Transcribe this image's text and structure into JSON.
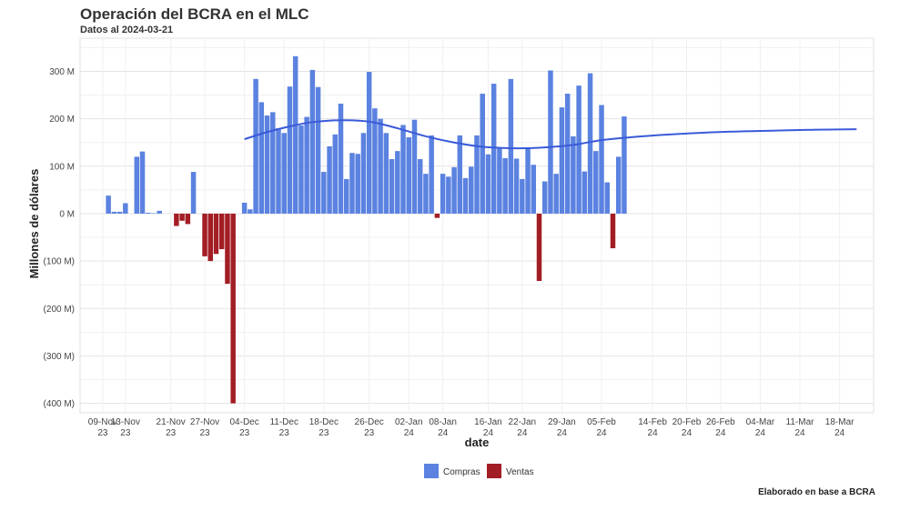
{
  "chart_data": {
    "type": "bar",
    "title": "Operación del BCRA en el MLC",
    "subtitle": "Datos al 2024-03-21",
    "caption": "Elaborado en base a BCRA",
    "xlabel": "date",
    "ylabel": "Millones de dólares",
    "ylim": [
      -420,
      370
    ],
    "yticks": [
      300,
      200,
      100,
      0,
      -100,
      -200,
      -300,
      -400
    ],
    "ytick_labels": [
      "300 M",
      "200 M",
      "100 M",
      "0 M",
      "(100 M)",
      "(200 M)",
      "(300 M)",
      "(400 M)"
    ],
    "xlim": [
      "2023-11-05",
      "2024-03-24"
    ],
    "x_ticks": [
      {
        "date": "2023-11-09",
        "line1": "09-Nov",
        "line2": "23"
      },
      {
        "date": "2023-11-13",
        "line1": "13-Nov",
        "line2": "23"
      },
      {
        "date": "2023-11-21",
        "line1": "21-Nov",
        "line2": "23"
      },
      {
        "date": "2023-11-27",
        "line1": "27-Nov",
        "line2": "23"
      },
      {
        "date": "2023-12-04",
        "line1": "04-Dec",
        "line2": "23"
      },
      {
        "date": "2023-12-11",
        "line1": "11-Dec",
        "line2": "23"
      },
      {
        "date": "2023-12-18",
        "line1": "18-Dec",
        "line2": "23"
      },
      {
        "date": "2023-12-26",
        "line1": "26-Dec",
        "line2": "23"
      },
      {
        "date": "2024-01-02",
        "line1": "02-Jan",
        "line2": "24"
      },
      {
        "date": "2024-01-08",
        "line1": "08-Jan",
        "line2": "24"
      },
      {
        "date": "2024-01-16",
        "line1": "16-Jan",
        "line2": "24"
      },
      {
        "date": "2024-01-22",
        "line1": "22-Jan",
        "line2": "24"
      },
      {
        "date": "2024-01-29",
        "line1": "29-Jan",
        "line2": "24"
      },
      {
        "date": "2024-02-05",
        "line1": "05-Feb",
        "line2": "24"
      },
      {
        "date": "2024-02-14",
        "line1": "14-Feb",
        "line2": "24"
      },
      {
        "date": "2024-02-20",
        "line1": "20-Feb",
        "line2": "24"
      },
      {
        "date": "2024-02-26",
        "line1": "26-Feb",
        "line2": "24"
      },
      {
        "date": "2024-03-04",
        "line1": "04-Mar",
        "line2": "24"
      },
      {
        "date": "2024-03-11",
        "line1": "11-Mar",
        "line2": "24"
      },
      {
        "date": "2024-03-18",
        "line1": "18-Mar",
        "line2": "24"
      }
    ],
    "legend": {
      "position": "bottom",
      "entries": [
        {
          "name": "Compras",
          "color": "#5b82e0"
        },
        {
          "name": "Ventas",
          "color": "#a31d24"
        }
      ]
    },
    "colors": {
      "compras": "#5b82e0",
      "ventas": "#a31d24",
      "trend": "#3a5ad9"
    },
    "grid": true,
    "bars": [
      {
        "date": "2023-11-10",
        "value": 38
      },
      {
        "date": "2023-11-11",
        "value": 4
      },
      {
        "date": "2023-11-12",
        "value": 4
      },
      {
        "date": "2023-11-13",
        "value": 22
      },
      {
        "date": "2023-11-15",
        "value": 120
      },
      {
        "date": "2023-11-16",
        "value": 131
      },
      {
        "date": "2023-11-17",
        "value": 2
      },
      {
        "date": "2023-11-18",
        "value": 1
      },
      {
        "date": "2023-11-19",
        "value": 6
      },
      {
        "date": "2023-11-20",
        "value": 0
      },
      {
        "date": "2023-11-22",
        "value": -26
      },
      {
        "date": "2023-11-23",
        "value": -15
      },
      {
        "date": "2023-11-24",
        "value": -22
      },
      {
        "date": "2023-11-25",
        "value": 88
      },
      {
        "date": "2023-11-26",
        "value": 0
      },
      {
        "date": "2023-11-27",
        "value": -90
      },
      {
        "date": "2023-11-28",
        "value": -100
      },
      {
        "date": "2023-11-29",
        "value": -85
      },
      {
        "date": "2023-11-30",
        "value": -75
      },
      {
        "date": "2023-12-01",
        "value": -148
      },
      {
        "date": "2023-12-02",
        "value": -400
      },
      {
        "date": "2023-12-04",
        "value": 23
      },
      {
        "date": "2023-12-05",
        "value": 9
      },
      {
        "date": "2023-12-06",
        "value": 284
      },
      {
        "date": "2023-12-07",
        "value": 235
      },
      {
        "date": "2023-12-08",
        "value": 207
      },
      {
        "date": "2023-12-09",
        "value": 214
      },
      {
        "date": "2023-12-10",
        "value": 180
      },
      {
        "date": "2023-12-11",
        "value": 170
      },
      {
        "date": "2023-12-12",
        "value": 268
      },
      {
        "date": "2023-12-13",
        "value": 332
      },
      {
        "date": "2023-12-14",
        "value": 186
      },
      {
        "date": "2023-12-15",
        "value": 204
      },
      {
        "date": "2023-12-16",
        "value": 303
      },
      {
        "date": "2023-12-17",
        "value": 267
      },
      {
        "date": "2023-12-18",
        "value": 88
      },
      {
        "date": "2023-12-19",
        "value": 142
      },
      {
        "date": "2023-12-20",
        "value": 167
      },
      {
        "date": "2023-12-21",
        "value": 232
      },
      {
        "date": "2023-12-22",
        "value": 73
      },
      {
        "date": "2023-12-23",
        "value": 128
      },
      {
        "date": "2023-12-24",
        "value": 126
      },
      {
        "date": "2023-12-25",
        "value": 170
      },
      {
        "date": "2023-12-26",
        "value": 299
      },
      {
        "date": "2023-12-27",
        "value": 222
      },
      {
        "date": "2023-12-28",
        "value": 200
      },
      {
        "date": "2023-12-29",
        "value": 170
      },
      {
        "date": "2023-12-30",
        "value": 115
      },
      {
        "date": "2023-12-31",
        "value": 132
      },
      {
        "date": "2024-01-01",
        "value": 187
      },
      {
        "date": "2024-01-02",
        "value": 161
      },
      {
        "date": "2024-01-03",
        "value": 198
      },
      {
        "date": "2024-01-04",
        "value": 115
      },
      {
        "date": "2024-01-05",
        "value": 84
      },
      {
        "date": "2024-01-06",
        "value": 165
      },
      {
        "date": "2024-01-07",
        "value": -9
      },
      {
        "date": "2024-01-08",
        "value": 84
      },
      {
        "date": "2024-01-09",
        "value": 78
      },
      {
        "date": "2024-01-10",
        "value": 98
      },
      {
        "date": "2024-01-11",
        "value": 165
      },
      {
        "date": "2024-01-12",
        "value": 75
      },
      {
        "date": "2024-01-13",
        "value": 99
      },
      {
        "date": "2024-01-14",
        "value": 165
      },
      {
        "date": "2024-01-15",
        "value": 253
      },
      {
        "date": "2024-01-16",
        "value": 125
      },
      {
        "date": "2024-01-17",
        "value": 274
      },
      {
        "date": "2024-01-18",
        "value": 140
      },
      {
        "date": "2024-01-19",
        "value": 117
      },
      {
        "date": "2024-01-20",
        "value": 284
      },
      {
        "date": "2024-01-21",
        "value": 116
      },
      {
        "date": "2024-01-22",
        "value": 73
      },
      {
        "date": "2024-01-23",
        "value": 140
      },
      {
        "date": "2024-01-24",
        "value": 103
      },
      {
        "date": "2024-01-25",
        "value": -142
      },
      {
        "date": "2024-01-26",
        "value": 68
      },
      {
        "date": "2024-01-27",
        "value": 302
      },
      {
        "date": "2024-01-28",
        "value": 84
      },
      {
        "date": "2024-01-29",
        "value": 224
      },
      {
        "date": "2024-01-30",
        "value": 253
      },
      {
        "date": "2024-01-31",
        "value": 163
      },
      {
        "date": "2024-02-01",
        "value": 270
      },
      {
        "date": "2024-02-02",
        "value": 89
      },
      {
        "date": "2024-02-03",
        "value": 296
      },
      {
        "date": "2024-02-04",
        "value": 132
      },
      {
        "date": "2024-02-05",
        "value": 229
      },
      {
        "date": "2024-02-06",
        "value": 66
      },
      {
        "date": "2024-02-07",
        "value": -73
      },
      {
        "date": "2024-02-08",
        "value": 120
      },
      {
        "date": "2024-02-09",
        "value": 205
      }
    ],
    "trend": [
      {
        "date": "2023-12-04",
        "value": 157
      },
      {
        "date": "2023-12-08",
        "value": 172
      },
      {
        "date": "2023-12-12",
        "value": 184
      },
      {
        "date": "2023-12-16",
        "value": 193
      },
      {
        "date": "2023-12-21",
        "value": 197
      },
      {
        "date": "2023-12-26",
        "value": 194
      },
      {
        "date": "2023-12-31",
        "value": 180
      },
      {
        "date": "2024-01-05",
        "value": 163
      },
      {
        "date": "2024-01-10",
        "value": 150
      },
      {
        "date": "2024-01-15",
        "value": 141
      },
      {
        "date": "2024-01-20",
        "value": 138
      },
      {
        "date": "2024-01-25",
        "value": 139
      },
      {
        "date": "2024-01-31",
        "value": 145
      },
      {
        "date": "2024-02-05",
        "value": 155
      },
      {
        "date": "2024-02-12",
        "value": 163
      },
      {
        "date": "2024-02-20",
        "value": 169
      },
      {
        "date": "2024-02-28",
        "value": 173
      },
      {
        "date": "2024-03-06",
        "value": 175
      },
      {
        "date": "2024-03-14",
        "value": 177
      },
      {
        "date": "2024-03-21",
        "value": 178
      }
    ]
  }
}
